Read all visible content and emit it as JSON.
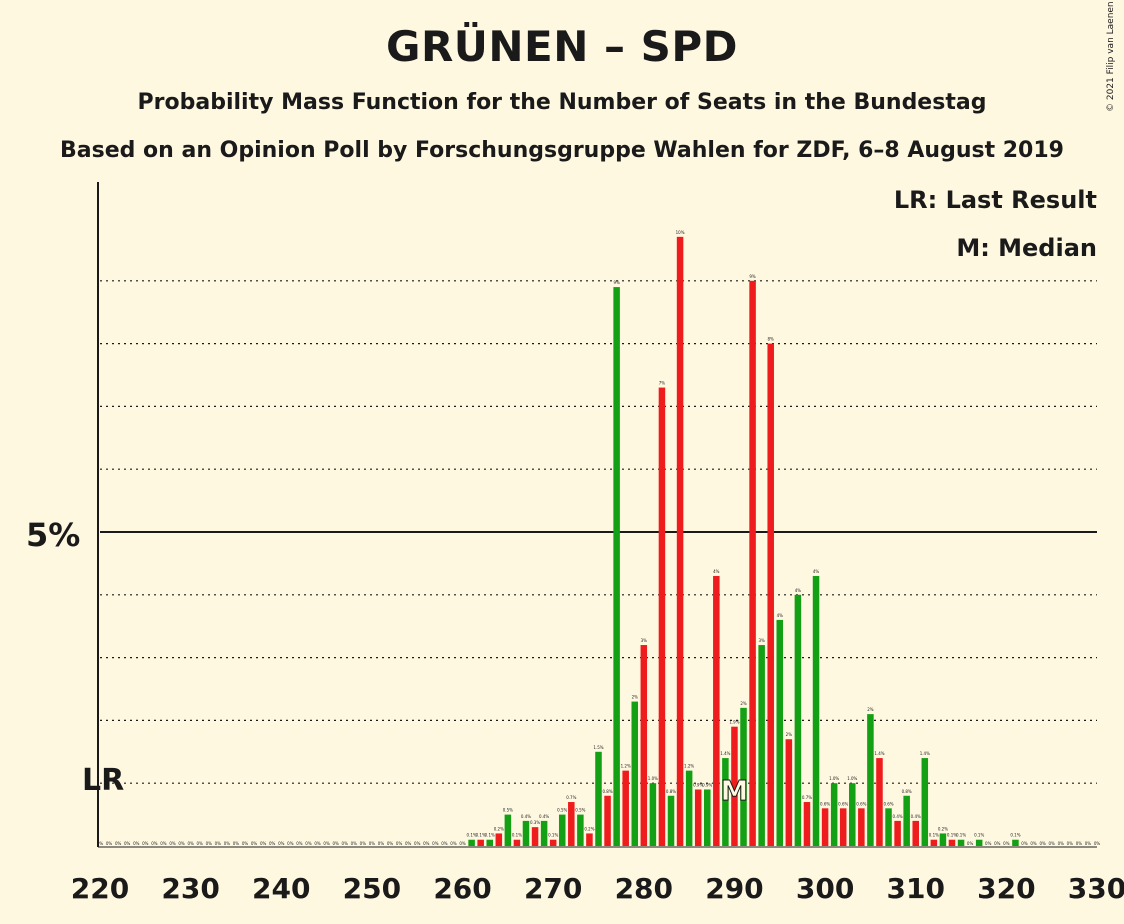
{
  "title": "GRÜNEN – SPD",
  "subtitle": "Probability Mass Function for the Number of Seats in the Bundestag",
  "subtitle2": "Based on an Opinion Poll by Forschungsgruppe Wahlen for ZDF, 6–8 August 2019",
  "copyright": "© 2021 Filip van Laenen",
  "legend": {
    "last_result": "LR: Last Result",
    "median": "M: Median"
  },
  "colors": {
    "background": "#fff8e1",
    "red": "#ee1c1c",
    "green": "#14a014",
    "text": "#1a1a1a"
  },
  "chart_data": {
    "type": "bar",
    "xlabel": "",
    "ylabel": "",
    "ylim": [
      0,
      10
    ],
    "y_major_label": "5%",
    "y_major_value": 5,
    "y_gridlines": [
      1,
      2,
      3,
      4,
      6,
      7,
      8,
      9
    ],
    "x_ticks": [
      220,
      230,
      240,
      250,
      260,
      270,
      280,
      290,
      300,
      310,
      320,
      330
    ],
    "last_result_label": "LR",
    "last_result_value": 1,
    "median_label": "M",
    "median_seat": 290,
    "x": [
      220,
      221,
      222,
      223,
      224,
      225,
      226,
      227,
      228,
      229,
      230,
      231,
      232,
      233,
      234,
      235,
      236,
      237,
      238,
      239,
      240,
      241,
      242,
      243,
      244,
      245,
      246,
      247,
      248,
      249,
      250,
      251,
      252,
      253,
      254,
      255,
      256,
      257,
      258,
      259,
      260,
      261,
      262,
      263,
      264,
      265,
      266,
      267,
      268,
      269,
      270,
      271,
      272,
      273,
      274,
      275,
      276,
      277,
      278,
      279,
      280,
      281,
      282,
      283,
      284,
      285,
      286,
      287,
      288,
      289,
      290,
      291,
      292,
      293,
      294,
      295,
      296,
      297,
      298,
      299,
      300,
      301,
      302,
      303,
      304,
      305,
      306,
      307,
      308,
      309,
      310,
      311,
      312,
      313,
      314,
      315,
      316,
      317,
      318,
      319,
      320,
      321,
      322,
      323,
      324,
      325,
      326,
      327,
      328,
      329,
      330
    ],
    "values": [
      0,
      0,
      0,
      0,
      0,
      0,
      0,
      0,
      0,
      0,
      0,
      0,
      0,
      0,
      0,
      0,
      0,
      0,
      0,
      0,
      0,
      0,
      0,
      0,
      0,
      0,
      0,
      0,
      0,
      0,
      0,
      0,
      0,
      0,
      0,
      0,
      0,
      0,
      0,
      0,
      0,
      0.1,
      0.1,
      0.1,
      0.2,
      0.5,
      0.1,
      0.4,
      0.3,
      0.4,
      0.1,
      0.5,
      0.7,
      0.5,
      0.2,
      1.5,
      0.8,
      8.9,
      1.2,
      2.3,
      3.2,
      1.0,
      7.3,
      0.8,
      9.7,
      1.2,
      0.9,
      0.9,
      4.3,
      1.4,
      1.9,
      2.2,
      9.0,
      3.2,
      8.0,
      3.6,
      1.7,
      4.0,
      0.7,
      4.3,
      0.6,
      1.0,
      0.6,
      1.0,
      0.6,
      2.1,
      1.4,
      0.6,
      0.4,
      0.8,
      0.4,
      1.4,
      0.1,
      0.2,
      0.1,
      0.1,
      0,
      0.1,
      0,
      0,
      0,
      0.1,
      0,
      0,
      0,
      0,
      0,
      0,
      0,
      0,
      0
    ],
    "labels": [
      "0%",
      "0%",
      "0%",
      "0%",
      "0%",
      "0%",
      "0%",
      "0%",
      "0%",
      "0%",
      "0%",
      "0%",
      "0%",
      "0%",
      "0%",
      "0%",
      "0%",
      "0%",
      "0%",
      "0%",
      "0%",
      "0%",
      "0%",
      "0%",
      "0%",
      "0%",
      "0%",
      "0%",
      "0%",
      "0%",
      "0%",
      "0%",
      "0%",
      "0%",
      "0%",
      "0%",
      "0%",
      "0%",
      "0%",
      "0%",
      "0%",
      "0.1%",
      "0.1%",
      "0.1%",
      "0.2%",
      "0.5%",
      "0.1%",
      "0.4%",
      "0.3%",
      "0.4%",
      "0.1%",
      "0.5%",
      "0.7%",
      "0.5%",
      "0.2%",
      "1.5%",
      "0.8%",
      "9%",
      "1.2%",
      "2%",
      "3%",
      "1.0%",
      "7%",
      "0.8%",
      "10%",
      "1.2%",
      "0.9%",
      "0.9%",
      "4%",
      "1.4%",
      "1.9%",
      "2%",
      "9%",
      "3%",
      "8%",
      "4%",
      "2%",
      "4%",
      "0.7%",
      "4%",
      "0.6%",
      "1.0%",
      "0.6%",
      "1.0%",
      "0.6%",
      "2%",
      "1.4%",
      "0.6%",
      "0.4%",
      "0.8%",
      "0.4%",
      "1.4%",
      "0.1%",
      "0.2%",
      "0.1%",
      "0.1%",
      "0%",
      "0.1%",
      "0%",
      "0%",
      "0%",
      "0.1%",
      "0%",
      "0%",
      "0%",
      "0%",
      "0%",
      "0%",
      "0%",
      "0%",
      "0%"
    ]
  }
}
